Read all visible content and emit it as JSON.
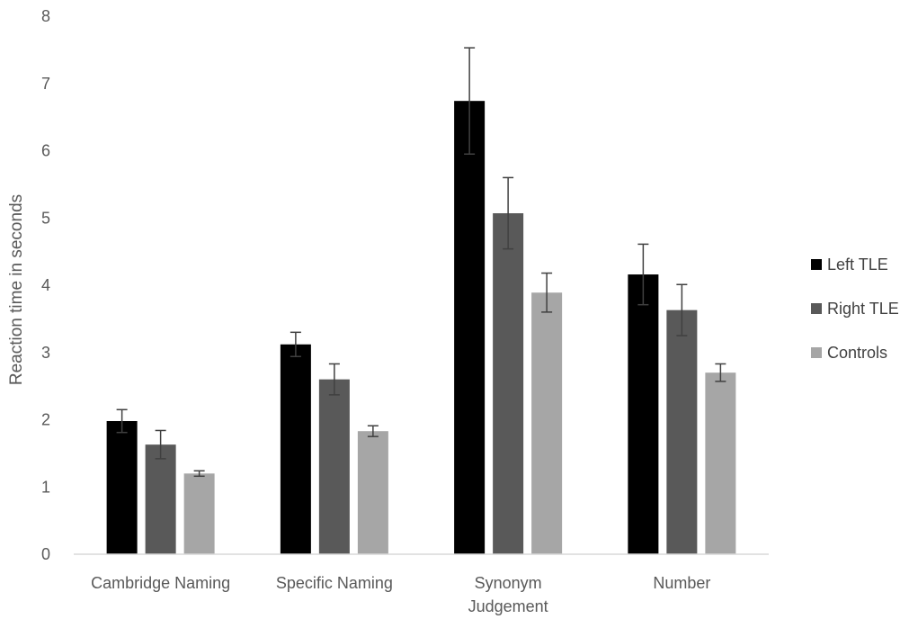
{
  "chart_data": {
    "type": "bar",
    "title": "",
    "xlabel": "",
    "ylabel": "Reaction time in seconds",
    "ylim": [
      0,
      8
    ],
    "yticks": [
      0,
      1,
      2,
      3,
      4,
      5,
      6,
      7,
      8
    ],
    "grid": false,
    "legend_position": "right",
    "categories": [
      [
        "Cambridge Naming"
      ],
      [
        "Specific Naming"
      ],
      [
        "Synonym",
        "Judgement"
      ],
      [
        "Number"
      ]
    ],
    "series": [
      {
        "name": "Left TLE",
        "color": "#000000",
        "values": [
          1.98,
          3.12,
          6.74,
          4.16
        ],
        "error": [
          0.17,
          0.18,
          0.79,
          0.45
        ]
      },
      {
        "name": "Right TLE",
        "color": "#595959",
        "values": [
          1.63,
          2.6,
          5.07,
          3.63
        ],
        "error": [
          0.21,
          0.23,
          0.53,
          0.38
        ]
      },
      {
        "name": "Controls",
        "color": "#a6a6a6",
        "values": [
          1.2,
          1.83,
          3.89,
          2.7
        ],
        "error": [
          0.04,
          0.08,
          0.29,
          0.13
        ]
      }
    ]
  }
}
